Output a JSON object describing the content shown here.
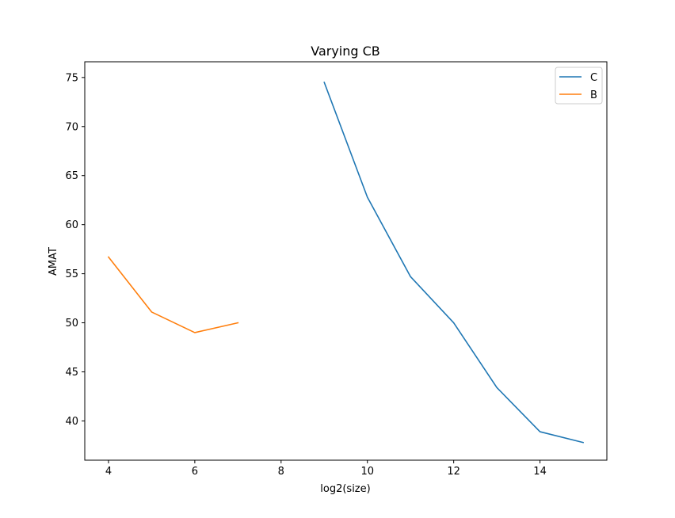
{
  "chart_data": {
    "type": "line",
    "title": "Varying CB",
    "xlabel": "log2(size)",
    "ylabel": "AMAT",
    "xlim": [
      3.45,
      15.55
    ],
    "ylim": [
      36.0,
      76.6
    ],
    "xticks": [
      4,
      6,
      8,
      10,
      12,
      14
    ],
    "yticks": [
      40,
      45,
      50,
      55,
      60,
      65,
      70,
      75
    ],
    "grid": false,
    "legend_position": "top-right",
    "series": [
      {
        "name": "C",
        "color": "#1f77b4",
        "x": [
          9,
          10,
          11,
          12,
          13,
          14,
          15
        ],
        "y": [
          74.5,
          62.8,
          54.7,
          50.0,
          43.4,
          38.9,
          37.8
        ]
      },
      {
        "name": "B",
        "color": "#ff7f0e",
        "x": [
          4,
          5,
          6,
          7
        ],
        "y": [
          56.7,
          51.1,
          49.0,
          50.0
        ]
      }
    ]
  }
}
